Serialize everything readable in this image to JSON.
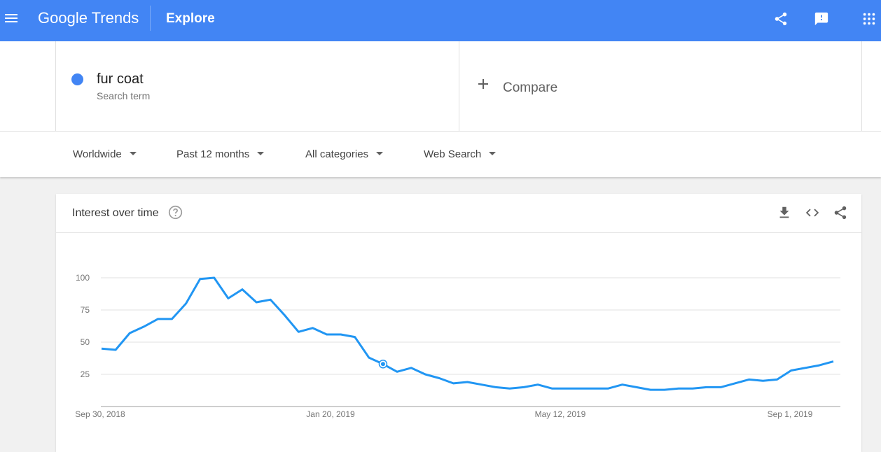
{
  "app": {
    "logo": "Google Trends",
    "section": "Explore",
    "icons": {
      "menu": "menu-icon",
      "share": "share-icon",
      "feedback": "feedback-icon",
      "apps": "apps-grid-icon"
    }
  },
  "search_term": {
    "name": "fur coat",
    "type": "Search term",
    "color": "#4285f4"
  },
  "compare": {
    "label": "Compare"
  },
  "filters": {
    "region": "Worldwide",
    "time": "Past 12 months",
    "category": "All categories",
    "property": "Web Search"
  },
  "interest_card": {
    "title": "Interest over time",
    "icons": [
      "help-icon",
      "download-icon",
      "embed-icon",
      "share-icon"
    ]
  },
  "chart_data": {
    "type": "line",
    "x_tick_labels": [
      "Sep 30, 2018",
      "Jan 20, 2019",
      "May 12, 2019",
      "Sep 1, 2019"
    ],
    "y_ticks": [
      25,
      50,
      75,
      100
    ],
    "ylim": [
      0,
      100
    ],
    "grid": true,
    "line_color": "#2196f3",
    "series": [
      {
        "values": [
          45,
          44,
          57,
          62,
          68,
          68,
          80,
          99,
          100,
          84,
          91,
          81,
          83,
          71,
          58,
          61,
          56,
          56,
          54,
          38,
          33,
          27,
          30,
          25,
          22,
          18,
          19,
          17,
          15,
          14,
          15,
          17,
          14,
          14,
          14,
          14,
          14,
          17,
          15,
          13,
          13,
          14,
          14,
          15,
          15,
          18,
          21,
          20,
          21,
          28,
          30,
          32,
          35
        ]
      }
    ],
    "highlight_index": 20
  }
}
